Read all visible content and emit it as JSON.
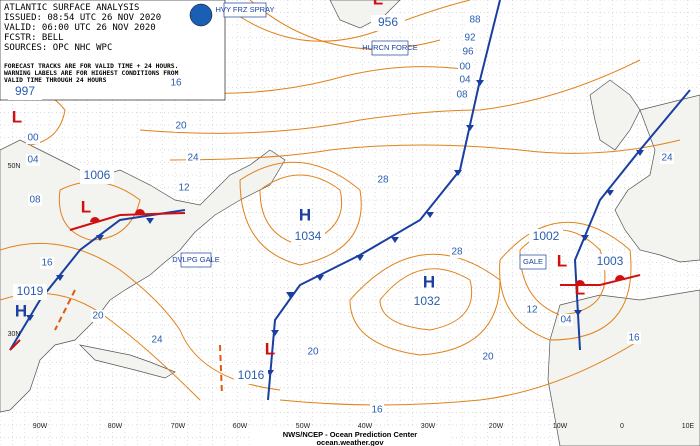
{
  "header": {
    "lines": [
      "ATLANTIC SURFACE ANALYSIS",
      "ISSUED: 08:54 UTC 26 NOV 2020",
      "VALID: 06:00 UTC 26 NOV 2020",
      "FCSTR: BELL",
      "SOURCES: OPC NHC WPC"
    ]
  },
  "note": {
    "lines": [
      "FORECAST TRACKS ARE FOR VALID TIME + 24 HOURS.",
      "WARNING LABELS ARE FOR HIGHEST CONDITIONS FROM",
      "VALID TIME THROUGH 24 HOURS"
    ]
  },
  "pressure_centers": [
    {
      "symbol": "L",
      "label": "997"
    },
    {
      "symbol": "L",
      "label": "1006"
    },
    {
      "symbol": "H",
      "label": "1019"
    },
    {
      "symbol": "H",
      "label": "1034"
    },
    {
      "symbol": "H",
      "label": "1032"
    },
    {
      "symbol": "L",
      "label": "1002"
    },
    {
      "symbol": "L",
      "label": "1003"
    },
    {
      "symbol": "L",
      "label": "1016"
    },
    {
      "symbol": "L",
      "label": "956"
    }
  ],
  "isobar_labels": [
    "88",
    "92",
    "96",
    "00",
    "04",
    "08",
    "16",
    "20",
    "24",
    "12",
    "28",
    "28",
    "24",
    "20",
    "16",
    "12",
    "04",
    "16",
    "20",
    "24",
    "20",
    "16",
    "08",
    "00",
    "04"
  ],
  "warnings": [
    "HVY FRZ SPRAY",
    "HURCN FORCE",
    "DVLPG GALE",
    "GALE"
  ],
  "longitudes": [
    "90W",
    "80W",
    "70W",
    "60W",
    "50W",
    "40W",
    "30W",
    "20W",
    "10W",
    "0",
    "10E"
  ],
  "latitudes": [
    "50N",
    "30N"
  ],
  "footer": {
    "lines": [
      "NWS/NCEP - Ocean Prediction Center",
      "ocean.weather.gov"
    ]
  }
}
